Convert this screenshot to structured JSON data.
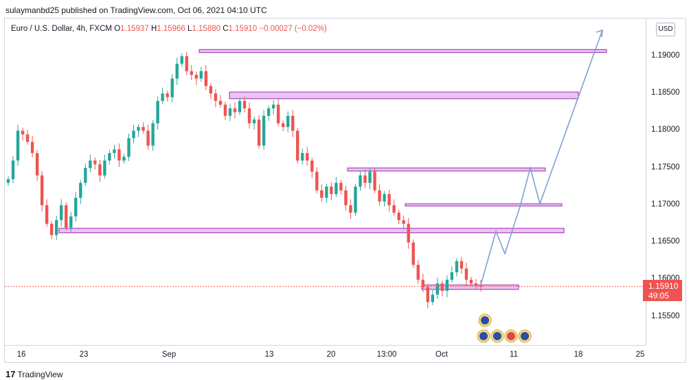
{
  "header": {
    "publisher_line": "sulaymanbd25 published on TradingView.com, Oct 06, 2021 04:10 UTC"
  },
  "legend": {
    "symbol": "Euro / U.S. Dollar, 4h, FXCM",
    "open_label": "O",
    "open_value": "1.15937",
    "high_label": "H",
    "high_value": "1.15966",
    "low_label": "L",
    "low_value": "1.15880",
    "close_label": "C",
    "close_value": "1.15910",
    "change": "−0.00027 (−0.02%)"
  },
  "currency_button": "USD",
  "price_axis": [
    "1.19000",
    "1.18500",
    "1.18000",
    "1.17500",
    "1.17000",
    "1.16500",
    "1.16000",
    "1.15500"
  ],
  "time_axis": [
    "16",
    "23",
    "Sep",
    "13",
    "20",
    "13:00",
    "Oct",
    "11",
    "18",
    "25"
  ],
  "last_price": {
    "price": "1.15910",
    "countdown": "49:05",
    "color": "#ef5350"
  },
  "footer": {
    "logo_mark": "17",
    "brand": "TradingView"
  },
  "colors": {
    "up": "#26a69a",
    "down": "#ef5350",
    "zone_fill": "#e8c6f0",
    "zone_border": "#9c27b0",
    "projection": "#7e9fd4"
  },
  "chart_data": {
    "type": "candlestick",
    "symbol": "EURUSD",
    "timeframe": "4h",
    "ylim": [
      1.1525,
      1.194
    ],
    "x_ticks": [
      "16",
      "23",
      "Sep",
      "13",
      "20",
      "13:00",
      "Oct",
      "11",
      "18",
      "25"
    ],
    "path_closes": [
      1.1735,
      1.176,
      1.18,
      1.1795,
      1.1785,
      1.177,
      1.174,
      1.17,
      1.1675,
      1.166,
      1.168,
      1.17,
      1.167,
      1.1685,
      1.171,
      1.173,
      1.175,
      1.176,
      1.1755,
      1.174,
      1.176,
      1.177,
      1.1775,
      1.176,
      1.1765,
      1.179,
      1.18,
      1.1805,
      1.18,
      1.178,
      1.181,
      1.184,
      1.185,
      1.1845,
      1.187,
      1.189,
      1.19,
      1.188,
      1.1875,
      1.187,
      1.188,
      1.186,
      1.185,
      1.184,
      1.1835,
      1.182,
      1.183,
      1.1825,
      1.184,
      1.183,
      1.181,
      1.1815,
      1.178,
      1.182,
      1.183,
      1.1835,
      1.181,
      1.1805,
      1.182,
      1.18,
      1.176,
      1.177,
      1.176,
      1.1745,
      1.172,
      1.171,
      1.1725,
      1.1715,
      1.173,
      1.172,
      1.17,
      1.169,
      1.1725,
      1.174,
      1.173,
      1.1745,
      1.172,
      1.1705,
      1.1715,
      1.17,
      1.169,
      1.168,
      1.1675,
      1.165,
      1.162,
      1.16,
      1.159,
      1.157,
      1.158,
      1.1595,
      1.1585,
      1.16,
      1.161,
      1.1625,
      1.1615,
      1.16,
      1.1595,
      1.1592,
      1.1591
    ],
    "zones": [
      {
        "low": 1.1905,
        "high": 1.1909
      },
      {
        "low": 1.1843,
        "high": 1.1852
      },
      {
        "low": 1.1746,
        "high": 1.175
      },
      {
        "low": 1.1699,
        "high": 1.1702
      },
      {
        "low": 1.1663,
        "high": 1.1669
      },
      {
        "low": 1.1587,
        "high": 1.1593
      }
    ],
    "projection_prices": [
      1.1593,
      1.1665,
      1.1635,
      1.1698,
      1.175,
      1.1702,
      1.1935
    ],
    "last_close": 1.1591
  }
}
